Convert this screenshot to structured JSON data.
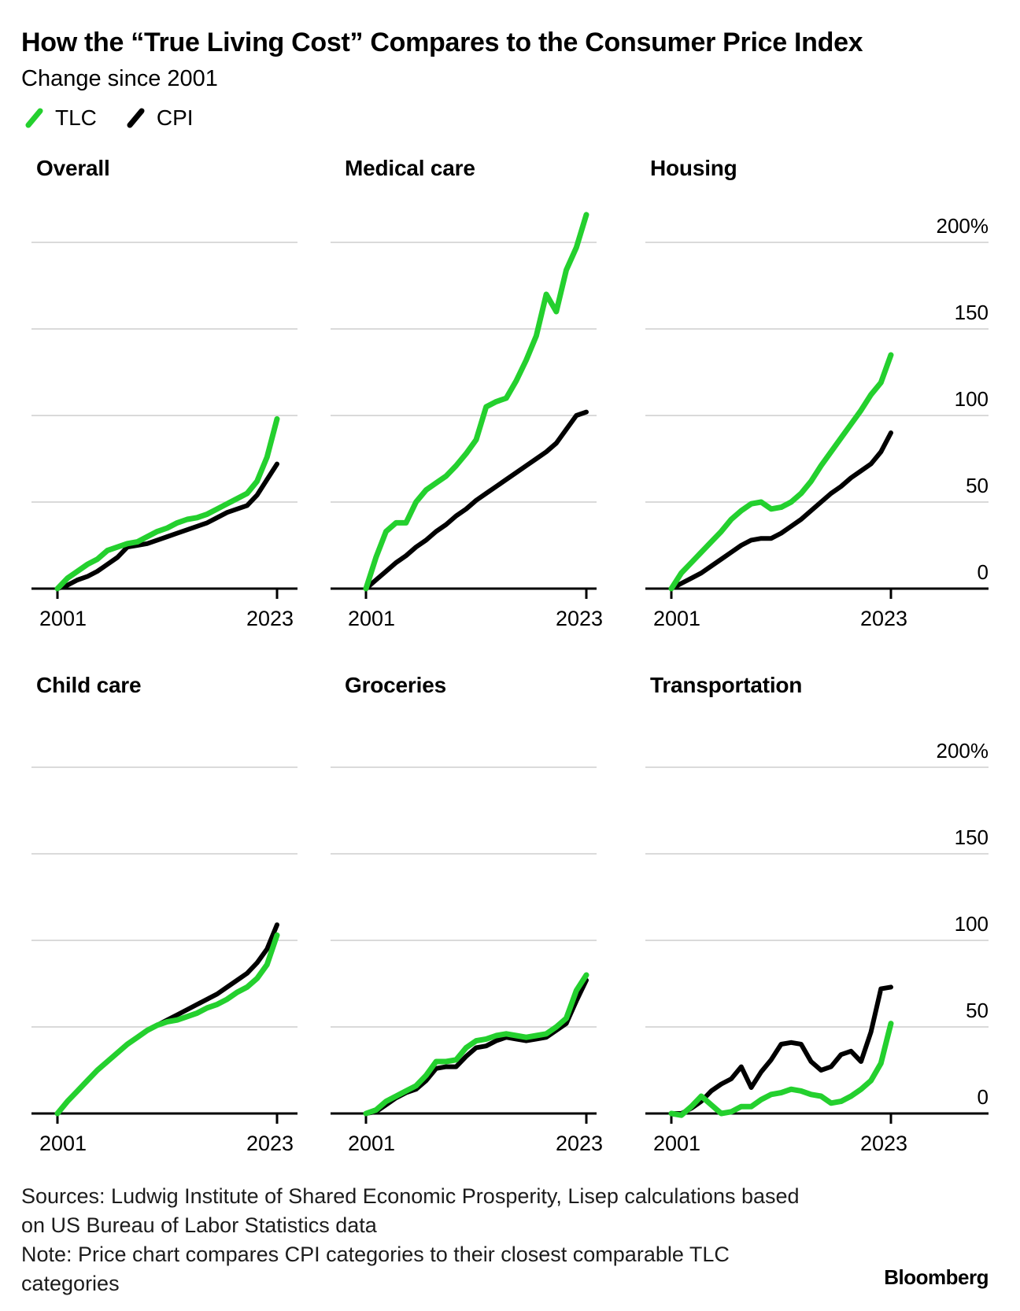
{
  "header": {
    "title": "How the “True Living Cost” Compares to the Consumer Price Index",
    "subtitle": "Change since 2001"
  },
  "legend": [
    {
      "label": "TLC",
      "color": "#24d02e"
    },
    {
      "label": "CPI",
      "color": "#000000"
    }
  ],
  "colors": {
    "tlc_green": "#24d02e",
    "cpi_black": "#000000",
    "gridline": "#cdcdcd",
    "axis": "#000000",
    "background": "#ffffff"
  },
  "axis": {
    "y_labels": [
      "200%",
      "150",
      "100",
      "50",
      "0"
    ],
    "y_ticks": [
      200,
      150,
      100,
      50,
      0
    ],
    "x_left": "2001",
    "x_right": "2023"
  },
  "chart_data": [
    {
      "type": "line",
      "title": "Overall",
      "x_years": [
        2001,
        2002,
        2003,
        2004,
        2005,
        2006,
        2007,
        2008,
        2009,
        2010,
        2011,
        2012,
        2013,
        2014,
        2015,
        2016,
        2017,
        2018,
        2019,
        2020,
        2021,
        2022,
        2023
      ],
      "series": [
        {
          "name": "TLC",
          "color": "#24d02e",
          "values": [
            0,
            6,
            10,
            14,
            17,
            22,
            24,
            26,
            27,
            30,
            33,
            35,
            38,
            40,
            41,
            43,
            46,
            49,
            52,
            55,
            62,
            76,
            98
          ]
        },
        {
          "name": "CPI",
          "color": "#000000",
          "values": [
            0,
            2,
            5,
            7,
            10,
            14,
            18,
            24,
            25,
            26,
            28,
            30,
            32,
            34,
            36,
            38,
            41,
            44,
            46,
            48,
            54,
            63,
            72
          ]
        }
      ],
      "ylim": [
        0,
        200
      ],
      "y_ticks": [
        0,
        50,
        100,
        150,
        200
      ],
      "x_tick_labels": [
        "2001",
        "2023"
      ],
      "grid": "horizontal",
      "legend_position": "top-of-figure"
    },
    {
      "type": "line",
      "title": "Medical care",
      "x_years": [
        2001,
        2002,
        2003,
        2004,
        2005,
        2006,
        2007,
        2008,
        2009,
        2010,
        2011,
        2012,
        2013,
        2014,
        2015,
        2016,
        2017,
        2018,
        2019,
        2020,
        2021,
        2022,
        2023
      ],
      "series": [
        {
          "name": "TLC",
          "color": "#24d02e",
          "values": [
            0,
            18,
            33,
            38,
            38,
            50,
            57,
            61,
            65,
            71,
            78,
            86,
            105,
            108,
            110,
            120,
            132,
            146,
            170,
            160,
            184,
            197,
            216
          ]
        },
        {
          "name": "CPI",
          "color": "#000000",
          "values": [
            0,
            5,
            10,
            15,
            19,
            24,
            28,
            33,
            37,
            42,
            46,
            51,
            55,
            59,
            63,
            67,
            71,
            75,
            79,
            84,
            92,
            100,
            102
          ]
        }
      ],
      "ylim": [
        0,
        200
      ],
      "y_ticks": [
        0,
        50,
        100,
        150,
        200
      ],
      "x_tick_labels": [
        "2001",
        "2023"
      ],
      "grid": "horizontal",
      "legend_position": "top-of-figure"
    },
    {
      "type": "line",
      "title": "Housing",
      "x_years": [
        2001,
        2002,
        2003,
        2004,
        2005,
        2006,
        2007,
        2008,
        2009,
        2010,
        2011,
        2012,
        2013,
        2014,
        2015,
        2016,
        2017,
        2018,
        2019,
        2020,
        2021,
        2022,
        2023
      ],
      "series": [
        {
          "name": "TLC",
          "color": "#24d02e",
          "values": [
            0,
            9,
            15,
            21,
            27,
            33,
            40,
            45,
            49,
            50,
            46,
            47,
            50,
            55,
            62,
            71,
            79,
            87,
            95,
            103,
            112,
            119,
            135
          ]
        },
        {
          "name": "CPI",
          "color": "#000000",
          "values": [
            0,
            3,
            6,
            9,
            13,
            17,
            21,
            25,
            28,
            29,
            29,
            32,
            36,
            40,
            45,
            50,
            55,
            59,
            64,
            68,
            72,
            79,
            90
          ]
        }
      ],
      "ylim": [
        0,
        200
      ],
      "y_ticks": [
        0,
        50,
        100,
        150,
        200
      ],
      "x_tick_labels": [
        "2001",
        "2023"
      ],
      "grid": "horizontal",
      "legend_position": "top-of-figure"
    },
    {
      "type": "line",
      "title": "Child care",
      "x_years": [
        2001,
        2002,
        2003,
        2004,
        2005,
        2006,
        2007,
        2008,
        2009,
        2010,
        2011,
        2012,
        2013,
        2014,
        2015,
        2016,
        2017,
        2018,
        2019,
        2020,
        2021,
        2022,
        2023
      ],
      "series": [
        {
          "name": "TLC",
          "color": "#24d02e",
          "values": [
            0,
            7,
            13,
            19,
            25,
            30,
            35,
            40,
            44,
            48,
            51,
            53,
            54,
            56,
            58,
            61,
            63,
            66,
            70,
            73,
            78,
            86,
            103
          ]
        },
        {
          "name": "CPI",
          "color": "#000000",
          "values": [
            0,
            7,
            13,
            19,
            25,
            30,
            35,
            40,
            44,
            48,
            51,
            54,
            57,
            60,
            63,
            66,
            69,
            73,
            77,
            81,
            87,
            95,
            109
          ]
        }
      ],
      "ylim": [
        0,
        200
      ],
      "y_ticks": [
        0,
        50,
        100,
        150,
        200
      ],
      "x_tick_labels": [
        "2001",
        "2023"
      ],
      "grid": "horizontal",
      "legend_position": "top-of-figure"
    },
    {
      "type": "line",
      "title": "Groceries",
      "x_years": [
        2001,
        2002,
        2003,
        2004,
        2005,
        2006,
        2007,
        2008,
        2009,
        2010,
        2011,
        2012,
        2013,
        2014,
        2015,
        2016,
        2017,
        2018,
        2019,
        2020,
        2021,
        2022,
        2023
      ],
      "series": [
        {
          "name": "TLC",
          "color": "#24d02e",
          "values": [
            0,
            2,
            7,
            10,
            13,
            16,
            22,
            30,
            30,
            31,
            38,
            42,
            43,
            45,
            46,
            45,
            44,
            45,
            46,
            50,
            55,
            71,
            80
          ]
        },
        {
          "name": "CPI",
          "color": "#000000",
          "values": [
            0,
            1,
            5,
            9,
            12,
            14,
            19,
            26,
            27,
            27,
            33,
            38,
            39,
            42,
            44,
            43,
            42,
            43,
            44,
            48,
            52,
            65,
            77
          ]
        }
      ],
      "ylim": [
        0,
        200
      ],
      "y_ticks": [
        0,
        50,
        100,
        150,
        200
      ],
      "x_tick_labels": [
        "2001",
        "2023"
      ],
      "grid": "horizontal",
      "legend_position": "top-of-figure"
    },
    {
      "type": "line",
      "title": "Transportation",
      "x_years": [
        2001,
        2002,
        2003,
        2004,
        2005,
        2006,
        2007,
        2008,
        2009,
        2010,
        2011,
        2012,
        2013,
        2014,
        2015,
        2016,
        2017,
        2018,
        2019,
        2020,
        2021,
        2022,
        2023
      ],
      "series": [
        {
          "name": "TLC",
          "color": "#24d02e",
          "values": [
            0,
            -1,
            4,
            10,
            5,
            0,
            1,
            4,
            4,
            8,
            11,
            12,
            14,
            13,
            11,
            10,
            6,
            7,
            10,
            14,
            19,
            29,
            52
          ]
        },
        {
          "name": "CPI",
          "color": "#000000",
          "values": [
            0,
            0,
            3,
            7,
            13,
            17,
            20,
            27,
            15,
            24,
            31,
            40,
            41,
            40,
            30,
            25,
            27,
            34,
            36,
            30,
            47,
            72,
            73
          ]
        }
      ],
      "ylim": [
        0,
        200
      ],
      "y_ticks": [
        0,
        50,
        100,
        150,
        200
      ],
      "x_tick_labels": [
        "2001",
        "2023"
      ],
      "grid": "horizontal",
      "legend_position": "top-of-figure"
    }
  ],
  "footer": {
    "sources": "Sources: Ludwig Institute of Shared Economic Prosperity, Lisep calculations based on US Bureau of Labor Statistics data",
    "note": "Note: Price chart compares CPI categories to their closest comparable TLC categories",
    "brand": "Bloomberg"
  }
}
